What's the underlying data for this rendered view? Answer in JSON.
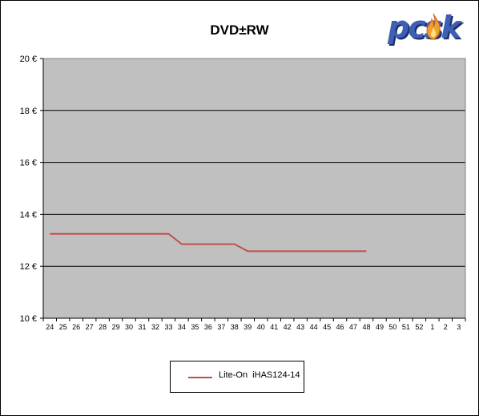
{
  "chart_data": {
    "type": "line",
    "title": "DVD±RW",
    "xlabel": "",
    "ylabel": "",
    "categories": [
      "24",
      "25",
      "26",
      "27",
      "28",
      "29",
      "30",
      "31",
      "32",
      "33",
      "34",
      "35",
      "36",
      "37",
      "38",
      "39",
      "40",
      "41",
      "42",
      "43",
      "44",
      "45",
      "46",
      "47",
      "48",
      "49",
      "50",
      "51",
      "52",
      "1",
      "2",
      "3"
    ],
    "ylim": [
      10,
      20
    ],
    "yticks": [
      10,
      12,
      14,
      16,
      18,
      20
    ],
    "ytick_labels": [
      "10 €",
      "12 €",
      "14 €",
      "16 €",
      "18 €",
      "20 €"
    ],
    "grid": true,
    "legend_position": "bottom",
    "plot_background": "#c0c0c0",
    "series": [
      {
        "name": "Lite-On  iHAS124-14",
        "color": "#c0504d",
        "values": [
          13.25,
          13.25,
          13.25,
          13.25,
          13.25,
          13.25,
          13.25,
          13.25,
          13.25,
          13.25,
          12.85,
          12.85,
          12.85,
          12.85,
          12.85,
          12.58,
          12.58,
          12.58,
          12.58,
          12.58,
          12.58,
          12.58,
          12.58,
          12.58,
          12.58,
          null,
          null,
          null,
          null,
          null,
          null,
          null
        ]
      }
    ]
  },
  "logo": {
    "text": "pcsk",
    "brand_color": "#3d5fb4",
    "flame_color": "#f0a030"
  }
}
